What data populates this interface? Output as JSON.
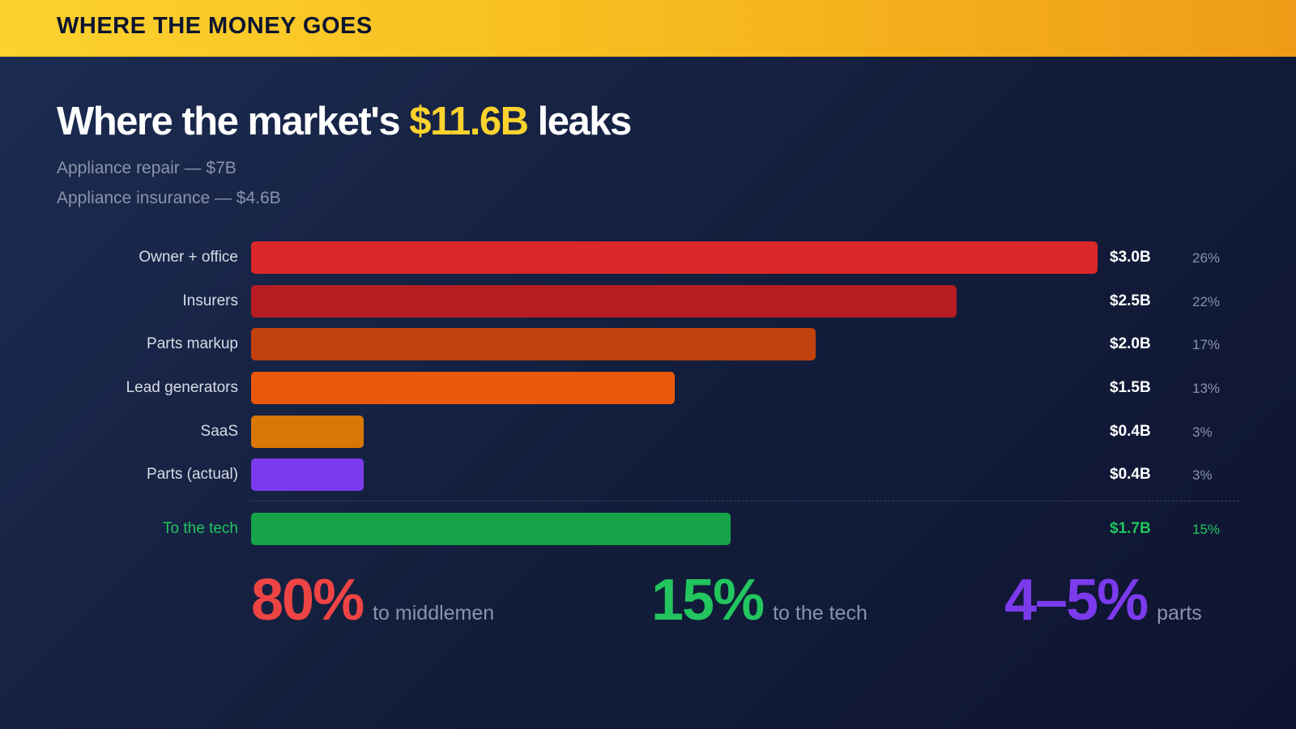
{
  "banner": {
    "title": "WHERE THE MONEY GOES"
  },
  "headline": {
    "prefix": "Where the market's ",
    "highlight": "$11.6B",
    "suffix": " leaks"
  },
  "subtitles": [
    "Appliance repair — $7B",
    "Appliance insurance — $4.6B"
  ],
  "colors": {
    "owner_office": "#dc2828",
    "insurers": "#b71c22",
    "parts_markup": "#c2410c",
    "lead_generators": "#ea580c",
    "saas": "#d97706",
    "parts_actual": "#7c3aed",
    "to_the_tech": "#16a34a",
    "highlight_yellow": "#fcd22d",
    "stat_red": "#ef4444",
    "stat_green": "#22c55e",
    "stat_purple": "#7c3aed"
  },
  "chart_data": {
    "type": "bar",
    "orientation": "horizontal",
    "categories": [
      "Owner + office",
      "Insurers",
      "Parts markup",
      "Lead generators",
      "SaaS",
      "Parts (actual)",
      "To the tech"
    ],
    "values": [
      3.0,
      2.5,
      2.0,
      1.5,
      0.4,
      0.4,
      1.7
    ],
    "value_labels": [
      "$3.0B",
      "$2.5B",
      "$2.0B",
      "$1.5B",
      "$0.4B",
      "$0.4B",
      "$1.7B"
    ],
    "percent_labels": [
      "26%",
      "22%",
      "17%",
      "13%",
      "3%",
      "3%",
      "15%"
    ],
    "unit": "$B",
    "grid": false,
    "legend": "none"
  },
  "stats": [
    {
      "value": "80%",
      "caption": "to middlemen"
    },
    {
      "value": "15%",
      "caption": "to the tech"
    },
    {
      "value": "4–5%",
      "caption": "parts"
    }
  ]
}
